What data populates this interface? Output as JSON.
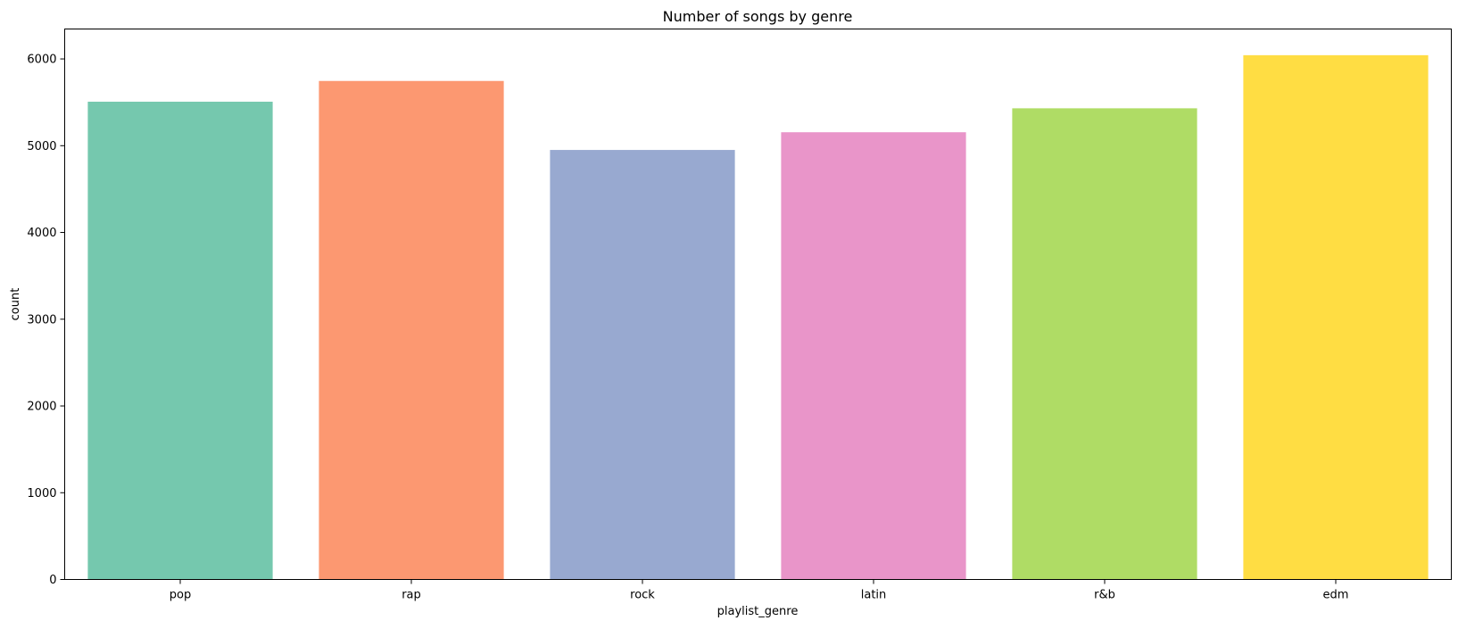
{
  "chart_data": {
    "type": "bar",
    "title": "Number of songs by genre",
    "xlabel": "playlist_genre",
    "ylabel": "count",
    "categories": [
      "pop",
      "rap",
      "rock",
      "latin",
      "r&b",
      "edm"
    ],
    "values": [
      5507,
      5746,
      4951,
      5155,
      5431,
      6043
    ],
    "colors": [
      "#66c2a5",
      "#fc8d62",
      "#8da0cb",
      "#e78ac3",
      "#a6d854",
      "#ffd92f"
    ],
    "bar_opacity": 0.9,
    "ylim": [
      0,
      6345
    ],
    "yticks": [
      "0",
      "1000",
      "2000",
      "3000",
      "4000",
      "5000",
      "6000"
    ],
    "grid": false,
    "legend": "none"
  }
}
